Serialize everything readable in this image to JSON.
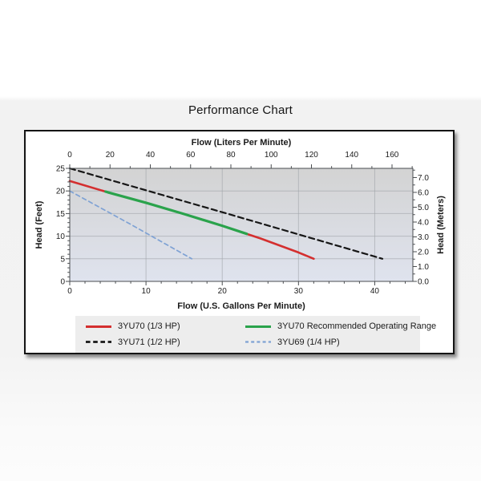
{
  "chart_data": {
    "type": "line",
    "title": "Performance Chart",
    "x_axis_top": {
      "label": "Flow (Liters Per Minute)",
      "unit": "LPM",
      "min": 0,
      "max": 170.3,
      "major_ticks": [
        0,
        20,
        40,
        60,
        80,
        100,
        120,
        140,
        160
      ],
      "minor_step": 10,
      "gallons_per_unit": 0.264172
    },
    "x_axis_bottom": {
      "label": "Flow (U.S. Gallons Per Minute)",
      "unit": "GPM",
      "min": 0,
      "max": 45,
      "major_ticks": [
        0,
        10,
        20,
        30,
        40
      ],
      "minor_step": 2
    },
    "y_axis_left": {
      "label": "Head (Feet)",
      "unit": "ft",
      "min": 0,
      "max": 25,
      "major_ticks": [
        0,
        5,
        10,
        15,
        20,
        25
      ],
      "minor_step": 1
    },
    "y_axis_right": {
      "label": "Head (Meters)",
      "unit": "m",
      "min": 0,
      "max": 7.62,
      "major_ticks": [
        0,
        1,
        2,
        3,
        4,
        5,
        6,
        7
      ],
      "tick_label_decimals": 1,
      "minor_step": 0.5,
      "feet_per_unit": 3.28084
    },
    "grid": {
      "vertical_at_gpm": [
        10,
        20,
        30,
        40
      ],
      "horizontal_at_feet": [
        5,
        10,
        15,
        20
      ]
    },
    "series": [
      {
        "name": "3YU70 (1/3 HP)",
        "color": "#d42f2f",
        "line": "solid",
        "width": 2.6,
        "points_gpm_ft": [
          [
            0,
            22.2
          ],
          [
            5,
            19.7
          ],
          [
            10,
            17.4
          ],
          [
            15,
            14.9
          ],
          [
            20,
            12.3
          ],
          [
            25,
            9.5
          ],
          [
            30,
            6.4
          ],
          [
            32,
            5
          ]
        ]
      },
      {
        "name": "3YU70 Recommended Operating Range",
        "color": "#2aa34c",
        "line": "solid",
        "width": 3.2,
        "overlay_of_series": 0,
        "gpm_from": 4.7,
        "gpm_to": 23.2
      },
      {
        "name": "3YU71 (1/2 HP)",
        "color": "#161616",
        "line": "dashed",
        "width": 2.2,
        "dash": [
          7,
          4.5
        ],
        "points_gpm_ft": [
          [
            0,
            25
          ],
          [
            20,
            15.3
          ],
          [
            41,
            5
          ]
        ]
      },
      {
        "name": "3YU69 (1/4 HP)",
        "color": "#7fa2d4",
        "line": "dashed",
        "width": 1.7,
        "dash": [
          5,
          4
        ],
        "points_gpm_ft": [
          [
            0,
            20
          ],
          [
            8,
            12.6
          ],
          [
            16,
            5
          ]
        ]
      }
    ],
    "legend": {
      "position": "bottom",
      "rows": 2,
      "columns": 2,
      "order": [
        0,
        1,
        2,
        3
      ]
    },
    "colors": {
      "plot_bg_top": "#d3d3d3",
      "plot_bg_bottom": "#dfe3ee",
      "grid": "#9fa3a8",
      "axis": "#4a4d50",
      "text": "#1b1b1b",
      "legend_bg": "#ededed",
      "panel_bg": "#ffffff",
      "panel_border": "#141414"
    }
  }
}
